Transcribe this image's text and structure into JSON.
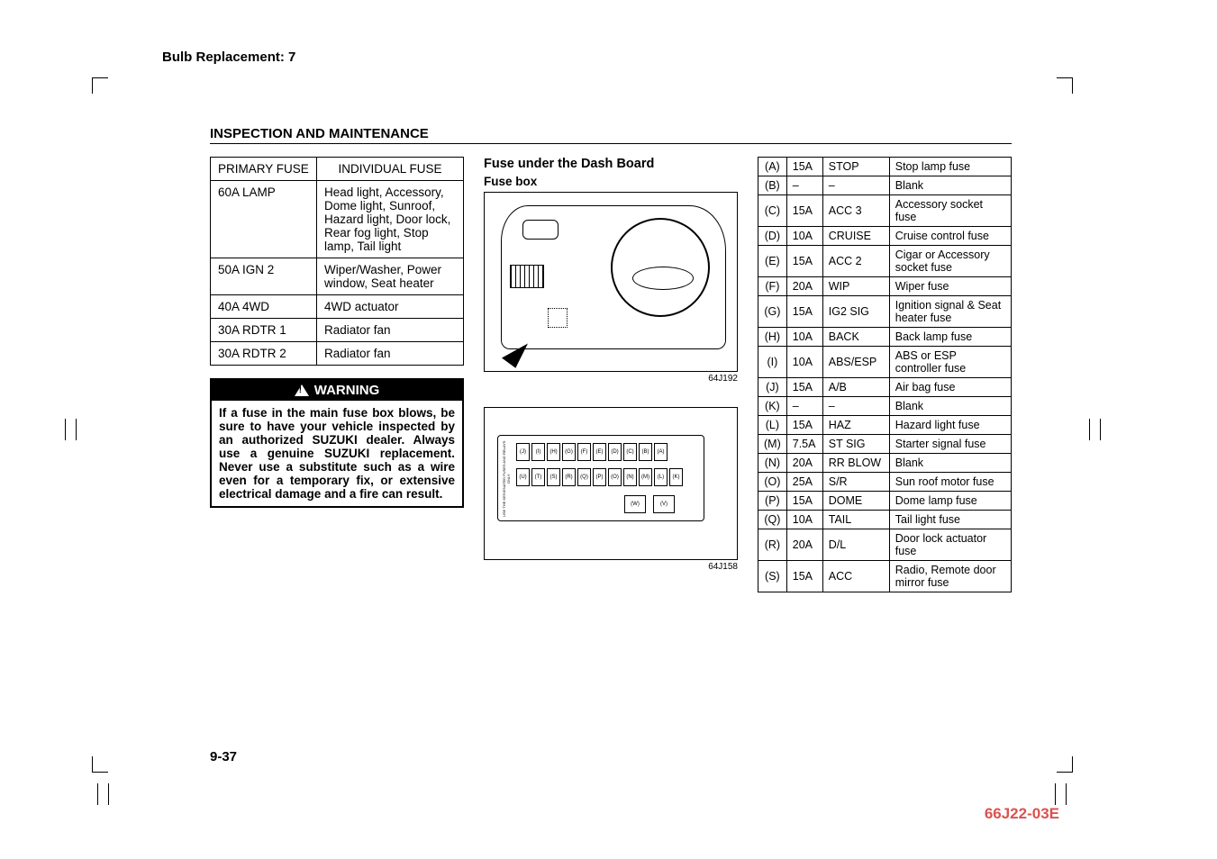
{
  "header_link": "Bulb Replacement: 7",
  "section_title": "INSPECTION AND MAINTENANCE",
  "primary_table": {
    "header_left": "PRIMARY FUSE",
    "header_right": "INDIVIDUAL FUSE",
    "rows": [
      {
        "l": "60A LAMP",
        "r": "Head light, Accessory, Dome light, Sunroof, Hazard light, Door lock, Rear fog light, Stop lamp, Tail light"
      },
      {
        "l": "50A IGN 2",
        "r": "Wiper/Washer, Power window, Seat heater"
      },
      {
        "l": "40A 4WD",
        "r": "4WD actuator"
      },
      {
        "l": "30A RDTR 1",
        "r": "Radiator fan"
      },
      {
        "l": "30A RDTR 2",
        "r": "Radiator fan"
      }
    ]
  },
  "warning": {
    "title": "WARNING",
    "body": "If a fuse in the main fuse box blows, be sure to have your vehicle inspected by an authorized SUZUKI dealer. Always use a genuine SUZUKI replacement. Never use a substitute such as a wire even for a temporary fix, or extensive electrical damage and a fire can result."
  },
  "mid": {
    "heading": "Fuse under the Dash Board",
    "sub": "Fuse box",
    "code1": "64J192",
    "code2": "64J158",
    "side_text": "USE THE DESIGNATED FUSES AND RELAYS ONLY",
    "slots_top": [
      "(J)",
      "(I)",
      "(H)",
      "(G)",
      "(F)",
      "(E)",
      "(D)",
      "(C)",
      "(B)",
      "(A)"
    ],
    "slots_mid": [
      "(U)",
      "(T)",
      "(S)",
      "(R)",
      "(Q)",
      "(P)",
      "(O)",
      "(N)",
      "(M)",
      "(L)",
      "(K)"
    ],
    "slots_bot": [
      "(W)",
      "(V)"
    ]
  },
  "fuse_table": [
    {
      "a": "(A)",
      "b": "15A",
      "c": "STOP",
      "d": "Stop lamp fuse"
    },
    {
      "a": "(B)",
      "b": "–",
      "c": "–",
      "d": "Blank"
    },
    {
      "a": "(C)",
      "b": "15A",
      "c": "ACC 3",
      "d": "Accessory socket fuse"
    },
    {
      "a": "(D)",
      "b": "10A",
      "c": "CRUISE",
      "d": "Cruise control fuse"
    },
    {
      "a": "(E)",
      "b": "15A",
      "c": "ACC 2",
      "d": "Cigar or Accessory socket fuse"
    },
    {
      "a": "(F)",
      "b": "20A",
      "c": "WIP",
      "d": "Wiper fuse"
    },
    {
      "a": "(G)",
      "b": "15A",
      "c": "IG2 SIG",
      "d": "Ignition signal & Seat heater fuse"
    },
    {
      "a": "(H)",
      "b": "10A",
      "c": "BACK",
      "d": "Back lamp fuse"
    },
    {
      "a": "(I)",
      "b": "10A",
      "c": "ABS/ESP",
      "d": "ABS or ESP controller fuse"
    },
    {
      "a": "(J)",
      "b": "15A",
      "c": "A/B",
      "d": "Air bag fuse"
    },
    {
      "a": "(K)",
      "b": "–",
      "c": "–",
      "d": "Blank"
    },
    {
      "a": "(L)",
      "b": "15A",
      "c": "HAZ",
      "d": "Hazard light fuse"
    },
    {
      "a": "(M)",
      "b": "7.5A",
      "c": "ST SIG",
      "d": "Starter signal fuse"
    },
    {
      "a": "(N)",
      "b": "20A",
      "c": "RR BLOW",
      "d": "Blank"
    },
    {
      "a": "(O)",
      "b": "25A",
      "c": "S/R",
      "d": "Sun roof motor fuse"
    },
    {
      "a": "(P)",
      "b": "15A",
      "c": "DOME",
      "d": "Dome lamp fuse"
    },
    {
      "a": "(Q)",
      "b": "10A",
      "c": "TAIL",
      "d": "Tail light fuse"
    },
    {
      "a": "(R)",
      "b": "20A",
      "c": "D/L",
      "d": "Door lock actuator fuse"
    },
    {
      "a": "(S)",
      "b": "15A",
      "c": "ACC",
      "d": "Radio, Remote door mirror fuse"
    }
  ],
  "page_num": "9-37",
  "doc_code": "66J22-03E"
}
